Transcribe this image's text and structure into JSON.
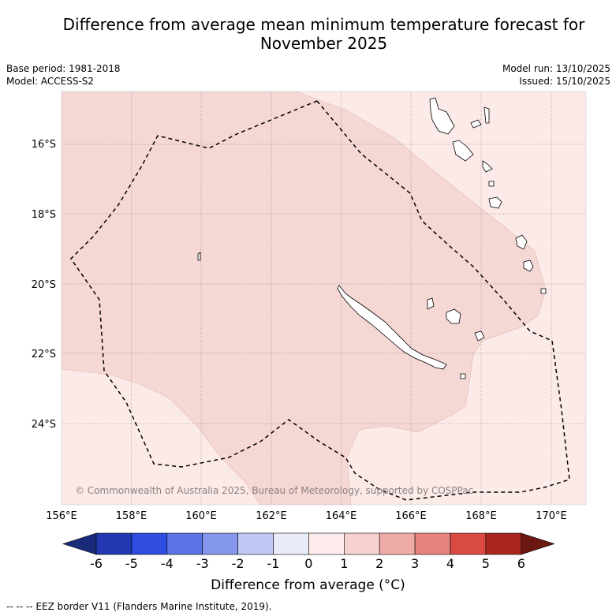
{
  "title": "Difference from average mean minimum temperature forecast for November 2025",
  "meta": {
    "base_period": "Base period: 1981-2018",
    "model": "Model: ACCESS-S2",
    "model_run": "Model run: 13/10/2025",
    "issued": "Issued: 15/10/2025"
  },
  "map": {
    "lat_labels": [
      "16°S",
      "18°S",
      "20°S",
      "22°S",
      "24°S"
    ],
    "lon_labels": [
      "156°E",
      "158°E",
      "160°E",
      "162°E",
      "164°E",
      "166°E",
      "168°E",
      "170°E"
    ],
    "copyright": "© Commonwealth of Australia 2025, Bureau of Meteorology, supported by COSPPac",
    "shading_colors": {
      "light": "#fbeae8",
      "medium": "#f5d7d4"
    }
  },
  "colorbar": {
    "title": "Difference from average (°C)",
    "tick_labels": [
      "-6",
      "-5",
      "-4",
      "-3",
      "-2",
      "-1",
      "0",
      "1",
      "2",
      "3",
      "4",
      "5",
      "6"
    ],
    "colors": [
      "#1a2a7a",
      "#2138b0",
      "#2f4de0",
      "#5a73e6",
      "#8497ec",
      "#c0c8f4",
      "#e8ebfa",
      "#fdeceb",
      "#f6d2cf",
      "#efaca7",
      "#e6837d",
      "#d94a42",
      "#ab2620",
      "#6b1812"
    ]
  },
  "footnote": "-- -- -- EEZ border V11 (Flanders Marine Institute, 2019)."
}
